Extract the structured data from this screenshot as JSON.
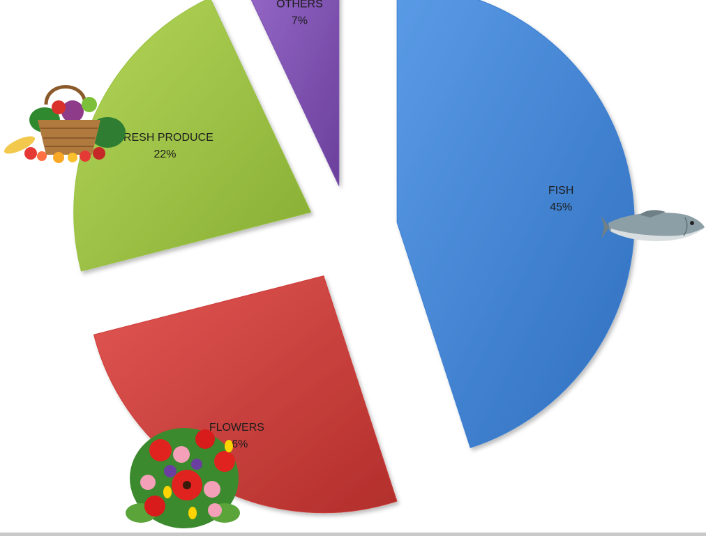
{
  "chart_data": {
    "type": "pie",
    "exploded": true,
    "title": "",
    "slices": [
      {
        "label": "FISH",
        "value_label": "45%",
        "value": 45,
        "color": "#3a7fd2",
        "illustration": "fish-picture"
      },
      {
        "label": "FLOWERS",
        "value_label": "26%",
        "value": 26,
        "color": "#cc3b37",
        "illustration": "flower-bouquet-picture"
      },
      {
        "label": "FRESH PRODUCE",
        "value_label": "22%",
        "value": 22,
        "color": "#98c140",
        "illustration": "produce-basket-picture"
      },
      {
        "label": "OTHERS",
        "value_label": "7%",
        "value": 7,
        "color": "#7b4fad",
        "illustration": ""
      }
    ]
  }
}
